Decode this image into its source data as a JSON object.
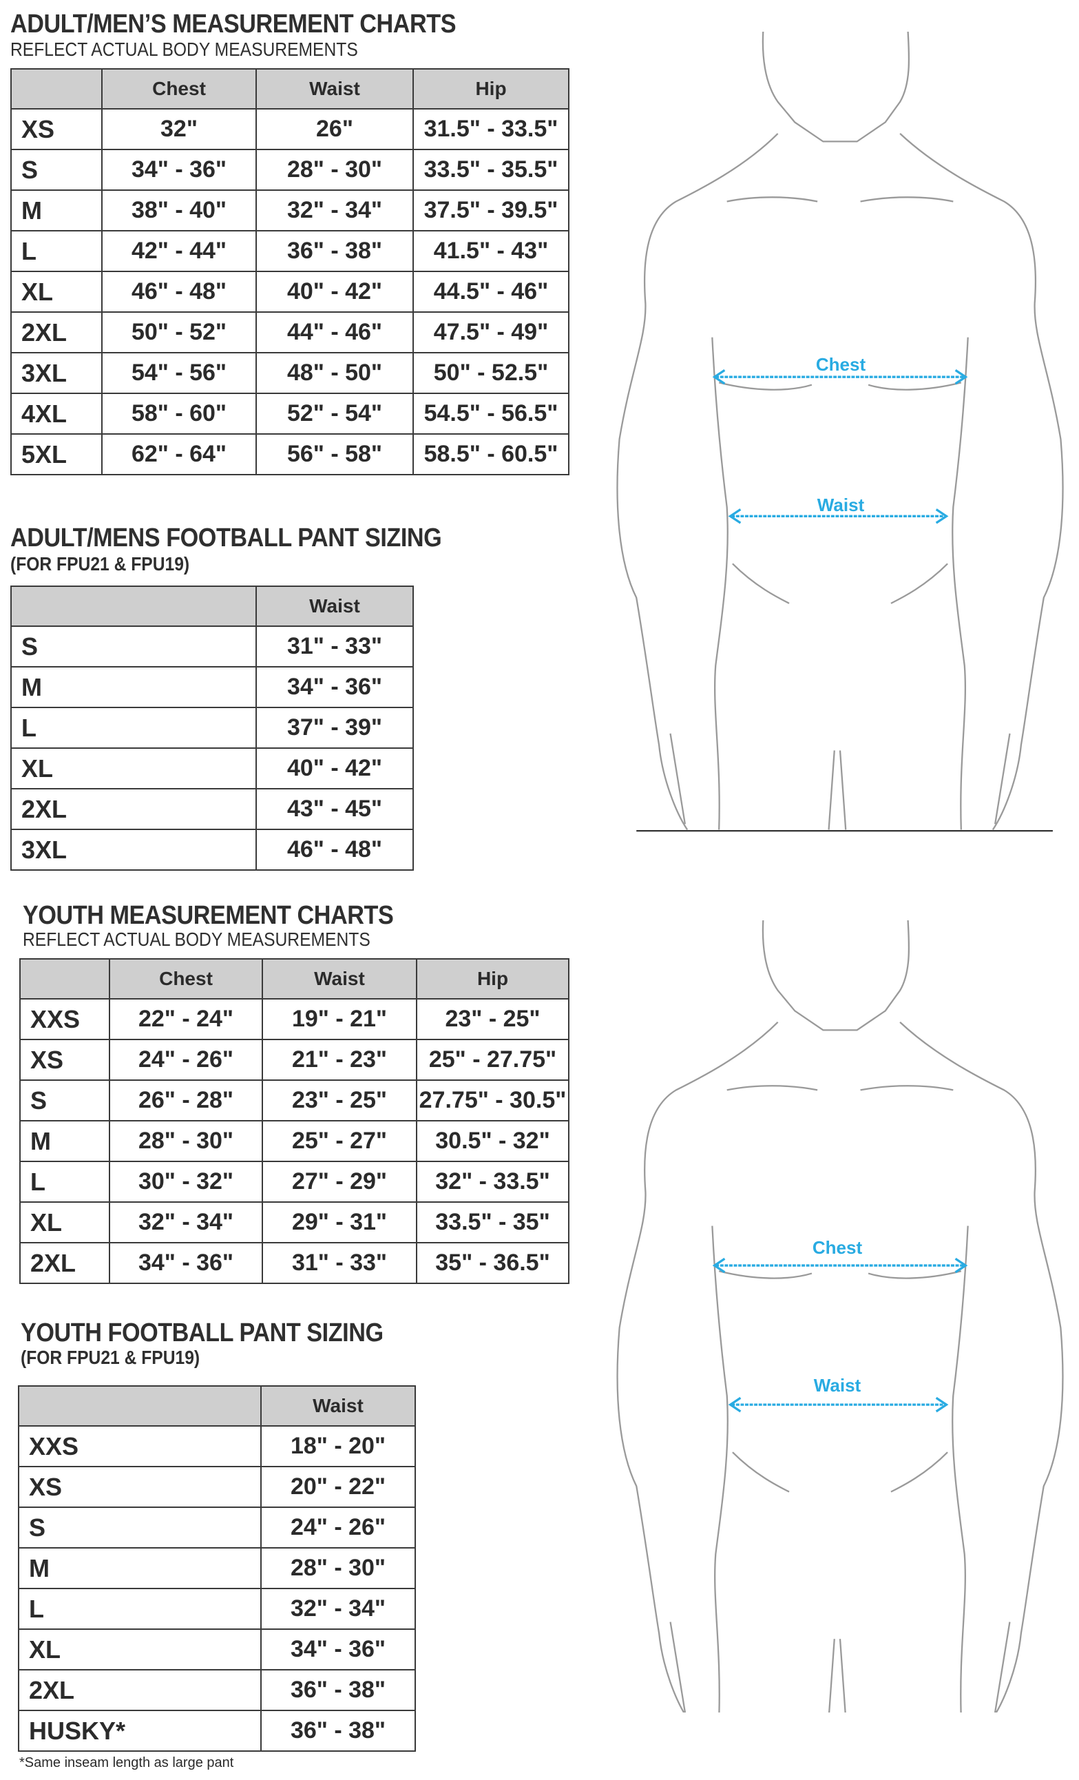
{
  "adult_chart": {
    "title": "ADULT/MEN’S MEASUREMENT CHARTS",
    "subtitle": "REFLECT ACTUAL BODY MEASUREMENTS",
    "headers": [
      "",
      "Chest",
      "Waist",
      "Hip"
    ],
    "rows": [
      [
        "XS",
        "32\"",
        "26\"",
        "31.5\" - 33.5\""
      ],
      [
        "S",
        "34\" - 36\"",
        "28\" - 30\"",
        "33.5\" - 35.5\""
      ],
      [
        "M",
        "38\" - 40\"",
        "32\" - 34\"",
        "37.5\" - 39.5\""
      ],
      [
        "L",
        "42\" - 44\"",
        "36\" - 38\"",
        "41.5\" - 43\""
      ],
      [
        "XL",
        "46\" - 48\"",
        "40\" - 42\"",
        "44.5\" - 46\""
      ],
      [
        "2XL",
        "50\" - 52\"",
        "44\" - 46\"",
        "47.5\" - 49\""
      ],
      [
        "3XL",
        "54\" - 56\"",
        "48\" - 50\"",
        "50\" - 52.5\""
      ],
      [
        "4XL",
        "58\" - 60\"",
        "52\" - 54\"",
        "54.5\" - 56.5\""
      ],
      [
        "5XL",
        "62\" - 64\"",
        "56\" - 58\"",
        "58.5\" - 60.5\""
      ]
    ]
  },
  "adult_pant": {
    "title": "ADULT/MENS FOOTBALL PANT SIZING",
    "subtitle": "(FOR FPU21 & FPU19)",
    "headers": [
      "",
      "Waist"
    ],
    "rows": [
      [
        "S",
        "31\" - 33\""
      ],
      [
        "M",
        "34\" - 36\""
      ],
      [
        "L",
        "37\" - 39\""
      ],
      [
        "XL",
        "40\" - 42\""
      ],
      [
        "2XL",
        "43\" - 45\""
      ],
      [
        "3XL",
        "46\" - 48\""
      ]
    ]
  },
  "youth_chart": {
    "title": "YOUTH MEASUREMENT CHARTS",
    "subtitle": "REFLECT ACTUAL BODY MEASUREMENTS",
    "headers": [
      "",
      "Chest",
      "Waist",
      "Hip"
    ],
    "rows": [
      [
        "XXS",
        "22\" - 24\"",
        "19\" - 21\"",
        "23\" - 25\""
      ],
      [
        "XS",
        "24\" - 26\"",
        "21\" - 23\"",
        "25\" - 27.75\""
      ],
      [
        "S",
        "26\" - 28\"",
        "23\" - 25\"",
        "27.75\" - 30.5\""
      ],
      [
        "M",
        "28\" - 30\"",
        "25\" - 27\"",
        "30.5\" - 32\""
      ],
      [
        "L",
        "30\" - 32\"",
        "27\" - 29\"",
        "32\" - 33.5\""
      ],
      [
        "XL",
        "32\" - 34\"",
        "29\" - 31\"",
        "33.5\" - 35\""
      ],
      [
        "2XL",
        "34\" - 36\"",
        "31\" - 33\"",
        "35\" - 36.5\""
      ]
    ]
  },
  "youth_pant": {
    "title": "YOUTH FOOTBALL PANT SIZING",
    "subtitle": "(FOR FPU21 & FPU19)",
    "headers": [
      "",
      "Waist"
    ],
    "rows": [
      [
        "XXS",
        "18\" - 20\""
      ],
      [
        "XS",
        "20\" - 22\""
      ],
      [
        "S",
        "24\" - 26\""
      ],
      [
        "M",
        "28\" - 30\""
      ],
      [
        "L",
        "32\" - 34\""
      ],
      [
        "XL",
        "34\" - 36\""
      ],
      [
        "2XL",
        "36\" - 38\""
      ],
      [
        "HUSKY*",
        "36\" - 38\""
      ]
    ],
    "footnote": "*Same inseam length as large pant"
  },
  "figures": {
    "chest_label": "Chest",
    "waist_label": "Waist",
    "accent_color": "#29abe2",
    "icon": "body-outline-figure"
  }
}
